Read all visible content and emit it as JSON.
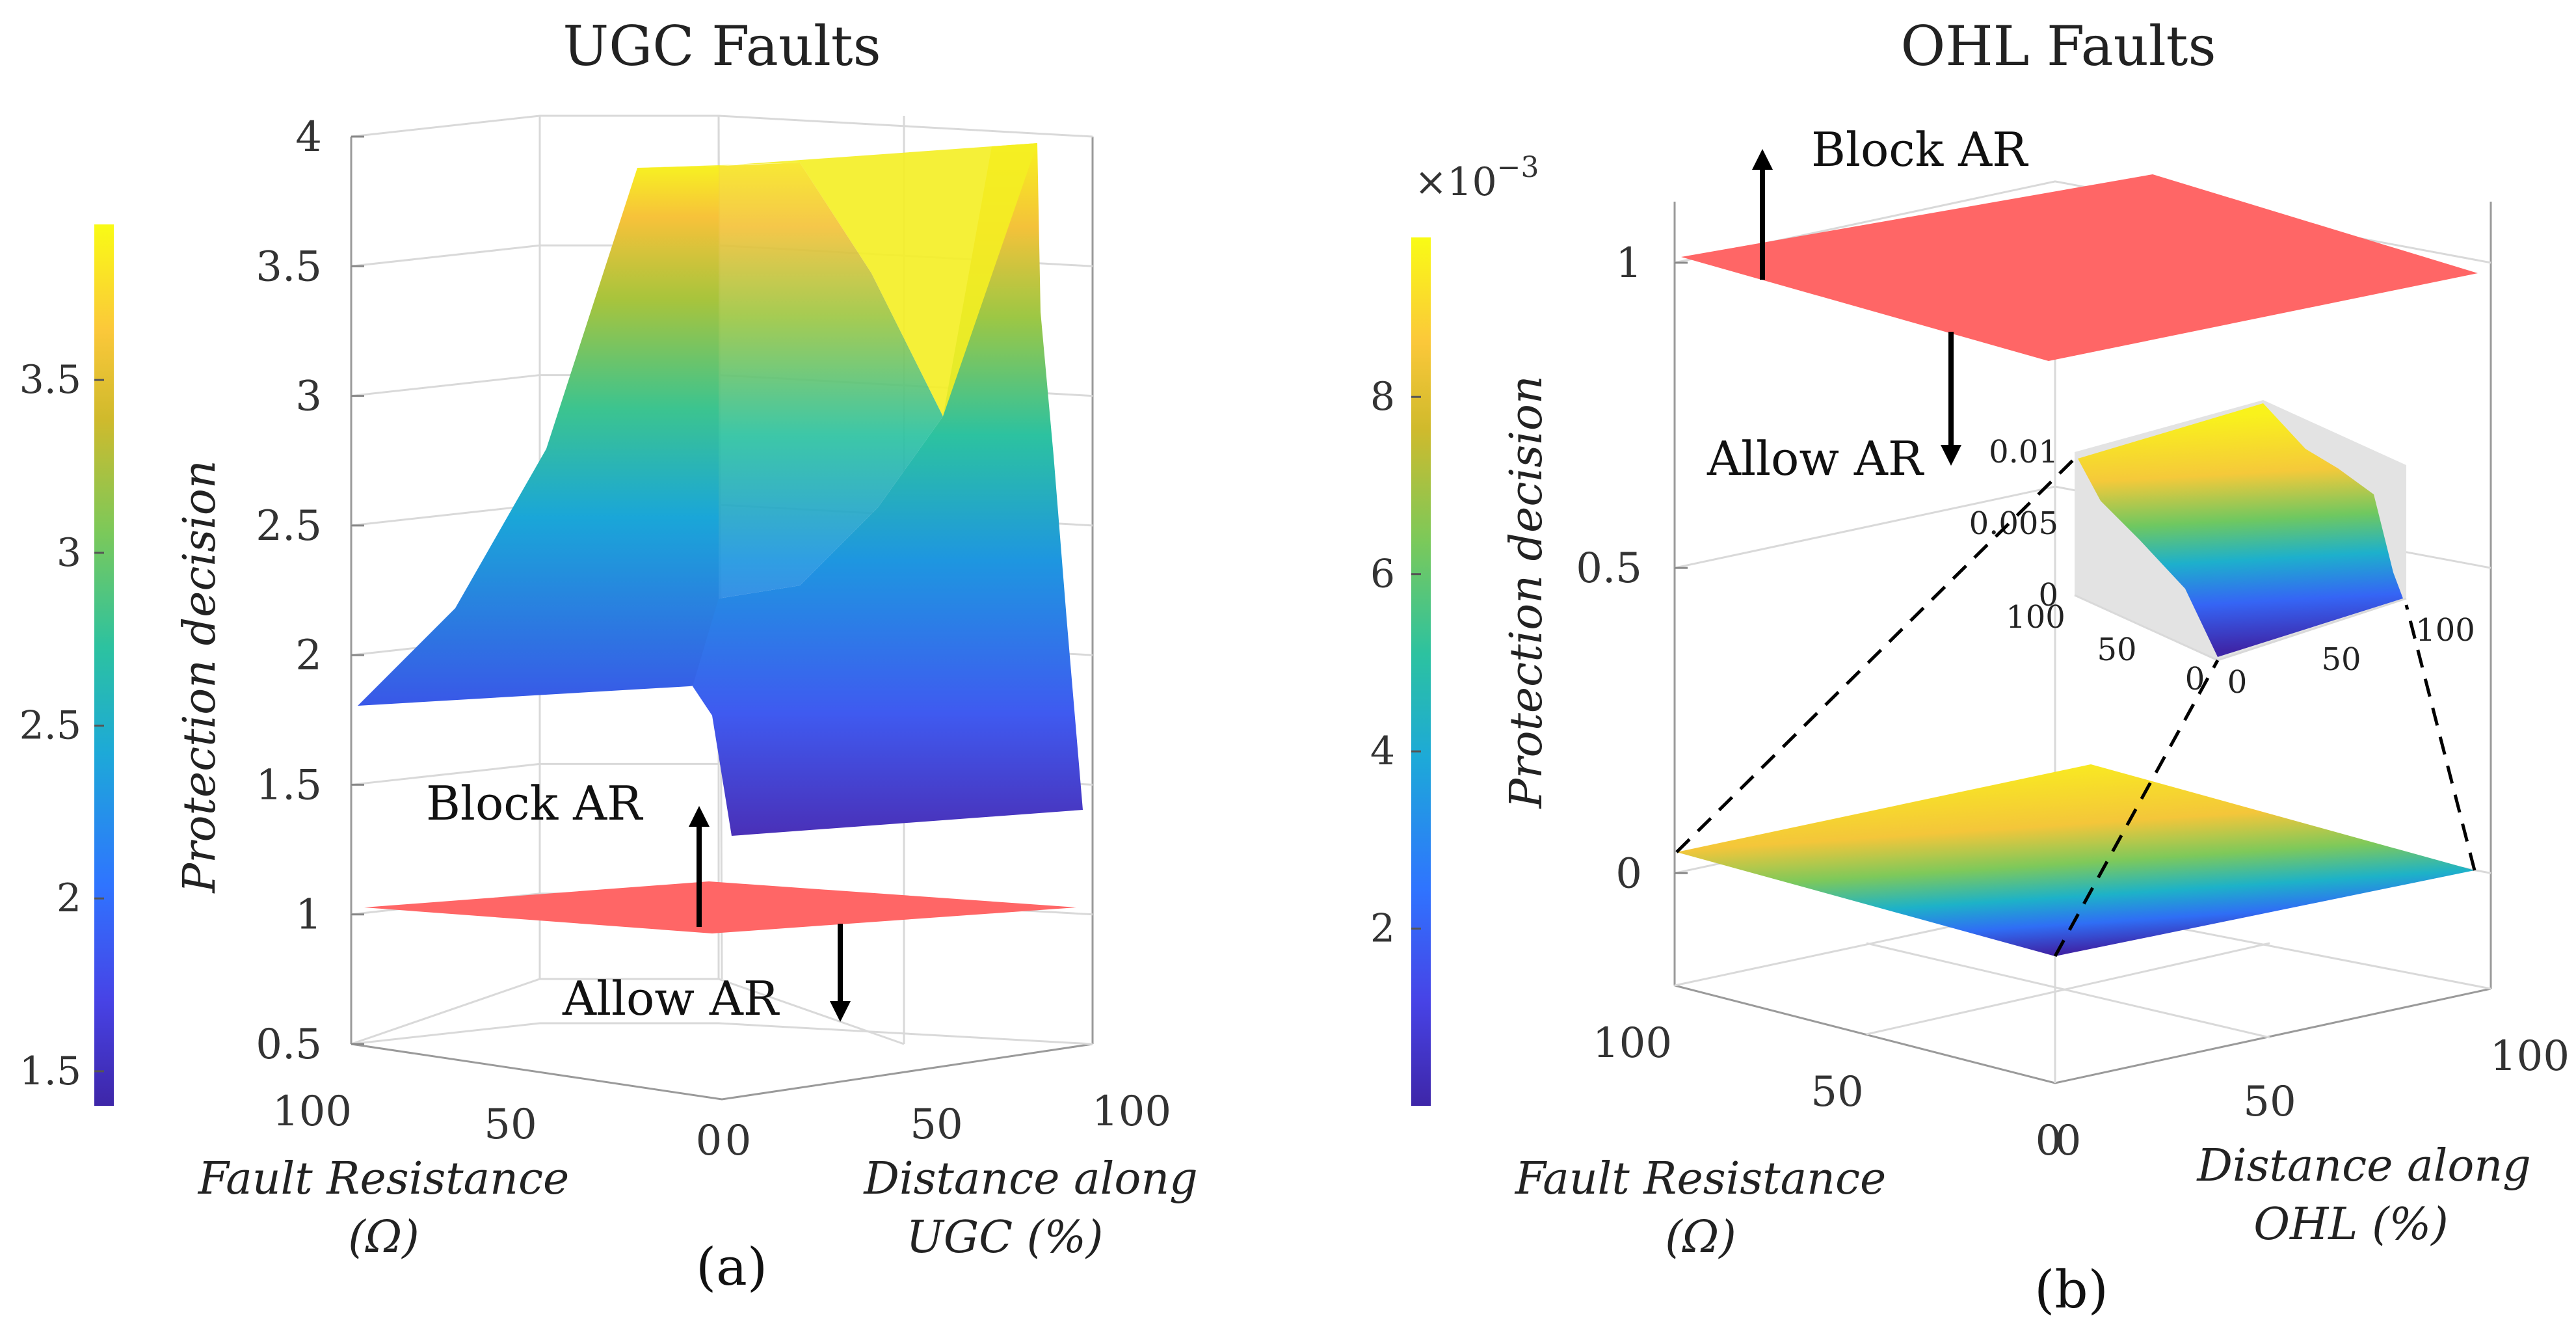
{
  "chart_data": [
    {
      "panel": "(a)",
      "type": "surface3d",
      "title": "UGC Faults",
      "zlabel": "Protection decision",
      "xlabel": [
        "Fault Resistance",
        "(Ω)"
      ],
      "ylabel": [
        "Distance along",
        "UGC (%)"
      ],
      "zticks": [
        "4",
        "3.5",
        "3",
        "2.5",
        "2",
        "1.5",
        "1",
        "0.5"
      ],
      "xticks": [
        "100",
        "50",
        "0"
      ],
      "yticks": [
        "0",
        "50",
        "100"
      ],
      "zlim": [
        0.5,
        4
      ],
      "threshold": 1,
      "annotations": {
        "block": "Block AR",
        "allow": "Allow AR"
      },
      "colorbar": {
        "ticks": [
          "3.5",
          "3",
          "2.5",
          "2",
          "1.5"
        ],
        "range": [
          1.4,
          3.95
        ]
      }
    },
    {
      "panel": "(b)",
      "type": "surface3d",
      "title": "OHL Faults",
      "zlabel": "Protection decision",
      "xlabel": [
        "Fault Resistance",
        "(Ω)"
      ],
      "ylabel": [
        "Distance along",
        "OHL (%)"
      ],
      "zticks": [
        "1",
        "0.5",
        "0"
      ],
      "xticks": [
        "100",
        "50",
        "0"
      ],
      "yticks": [
        "0",
        "50",
        "100"
      ],
      "zlim": [
        -0.2,
        1.1
      ],
      "threshold": 1,
      "annotations": {
        "block": "Block AR",
        "allow": "Allow AR"
      },
      "colorbar": {
        "ticks": [
          "8",
          "6",
          "4",
          "2"
        ],
        "multiplier_base": "×10",
        "multiplier_exp": "−3",
        "range": [
          0,
          0.0098
        ]
      },
      "inset": {
        "zticks": [
          "0.01",
          "0.005",
          "0"
        ],
        "xticks": [
          "100",
          "50",
          "0"
        ],
        "yticks": [
          "0",
          "50",
          "100"
        ],
        "zlim": [
          0,
          0.01
        ]
      }
    }
  ],
  "colors": {
    "threshold_plane": "#ff6666",
    "parula": [
      "#3e26a8",
      "#4743e6",
      "#2f74ff",
      "#1da9d8",
      "#2cc2a0",
      "#7bc95a",
      "#d0ba2c",
      "#fbc83a",
      "#f9fb15"
    ]
  }
}
